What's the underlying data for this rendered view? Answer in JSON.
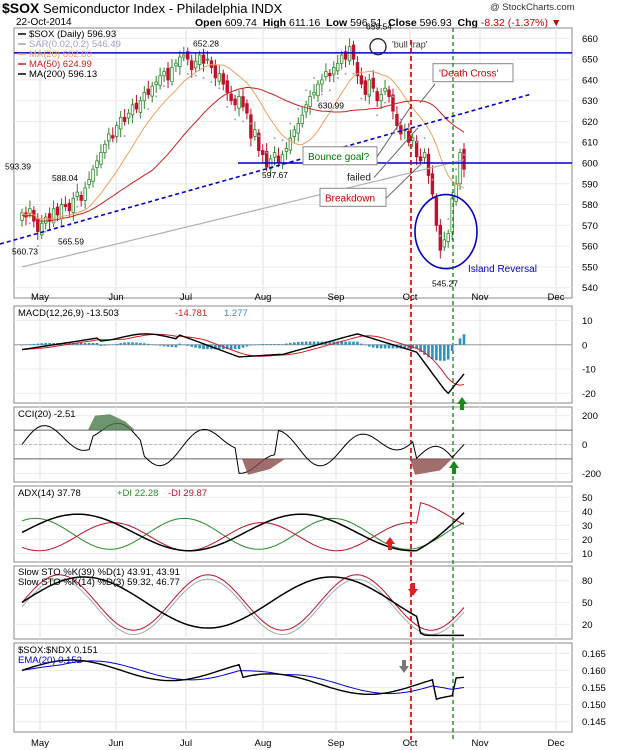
{
  "header": {
    "symbol": "$SOX",
    "name": "Semiconductor Index - Philadelphia INDX",
    "date": "22-Oct-2014",
    "open_label": "Open",
    "open": "609.74",
    "high_label": "High",
    "high": "611.16",
    "low_label": "Low",
    "low": "596.51",
    "close_label": "Close",
    "close": "596.93",
    "chg_label": "Chg",
    "chg": "-8.32 (-1.37%)",
    "copyright": "@ StockCharts.com"
  },
  "colors": {
    "up": "#2a8a2a",
    "down": "#c0102a",
    "ma20": "#f0a060",
    "ma50": "#d02020",
    "ma200": "#b0b0b0",
    "sar": "#a0a0d0",
    "annotation_blue": "#0000cc",
    "annotation_red": "#cc0000",
    "annotation_green": "#007700"
  },
  "chart_data": [
    {
      "type": "candlestick",
      "title": "$SOX (Daily) 596.93",
      "legend": [
        {
          "name": "$SOX (Daily) 596.93",
          "color": "#000000"
        },
        {
          "name": "SAR(0.02,0.2) 546.49",
          "color": "#a0a0d0"
        },
        {
          "name": "MA(20) 602.00",
          "color": "#f0a060"
        },
        {
          "name": "MA(50) 624.99",
          "color": "#d02020"
        },
        {
          "name": "MA(200) 596.13",
          "color": "#000000"
        }
      ],
      "y_ticks": [
        540,
        550,
        560,
        570,
        580,
        590,
        600,
        610,
        620,
        630,
        640,
        650,
        660
      ],
      "ylim": [
        535,
        665
      ],
      "x_ticks": [
        "May",
        "Jun",
        "Jul",
        "Aug",
        "Sep",
        "Oct",
        "Nov",
        "Dec"
      ],
      "closes": [
        576,
        574,
        578,
        572,
        567,
        571,
        574,
        572,
        578,
        575,
        580,
        579,
        577,
        583,
        586,
        582,
        588,
        592,
        597,
        601,
        605,
        609,
        614,
        612,
        618,
        622,
        620,
        624,
        628,
        626,
        630,
        634,
        633,
        637,
        639,
        642,
        644,
        640,
        646,
        648,
        651,
        652,
        650,
        645,
        649,
        652,
        648,
        650,
        646,
        641,
        643,
        638,
        634,
        630,
        628,
        632,
        627,
        624,
        612,
        616,
        606,
        604,
        598,
        602,
        605,
        600,
        604,
        607,
        612,
        616,
        619,
        623,
        628,
        632,
        634,
        638,
        640,
        644,
        642,
        646,
        648,
        652,
        650,
        656,
        650,
        642,
        638,
        633,
        640,
        636,
        630,
        633,
        636,
        632,
        625,
        618,
        614,
        616,
        610,
        612,
        603,
        601,
        605,
        594,
        585,
        570,
        558,
        563,
        566,
        583,
        590,
        605,
        597
      ],
      "point_labels": [
        {
          "text": "593.39",
          "value": 593.39
        },
        {
          "text": "588.04",
          "value": 588.04
        },
        {
          "text": "560.73",
          "value": 560.73
        },
        {
          "text": "565.59",
          "value": 565.59
        },
        {
          "text": "652.28",
          "value": 652.28
        },
        {
          "text": "597.67",
          "value": 597.67
        },
        {
          "text": "630.99",
          "value": 630.99
        },
        {
          "text": "659.54",
          "value": 659.54
        },
        {
          "text": "545.27",
          "value": 545.27
        }
      ],
      "annotations": [
        "'bull trap'",
        "'Death Cross'",
        "Bounce goal?",
        "failed",
        "Breakdown",
        "Island Reversal"
      ],
      "horizontal_lines": [
        653,
        600
      ]
    },
    {
      "type": "line",
      "title": "MACD(12,26,9)",
      "legend": [
        {
          "name": "MACD(12,26,9) -13.503",
          "color": "#000000"
        },
        {
          "name": "-14.781",
          "color": "#d02020"
        },
        {
          "name": "1.277",
          "color": "#3090c0"
        }
      ],
      "y_ticks": [
        10,
        0,
        -10,
        -20
      ],
      "ylim": [
        -24,
        16
      ]
    },
    {
      "type": "line",
      "title": "CCI(20)",
      "legend": [
        {
          "name": "CCI(20) -2.51",
          "color": "#000000"
        }
      ],
      "y_ticks": [
        200,
        0,
        -200
      ],
      "ylim": [
        -260,
        260
      ]
    },
    {
      "type": "line",
      "title": "ADX(14)",
      "legend": [
        {
          "name": "ADX(14) 37.78",
          "color": "#000000"
        },
        {
          "name": "+DI 22.28",
          "color": "#2a8a2a"
        },
        {
          "name": "-DI 29.87",
          "color": "#c0102a"
        }
      ],
      "y_ticks": [
        50,
        40,
        30,
        20,
        10
      ],
      "ylim": [
        4,
        58
      ]
    },
    {
      "type": "line",
      "title": "Slow STO",
      "legend": [
        {
          "name": "Slow STO %K(39) %D(1) 43.91, 43.91",
          "color": "#000000"
        },
        {
          "name": "Slow STO %K(14) %D(3) 59.32, 46.77",
          "color": "#c0102a"
        }
      ],
      "y_ticks": [
        80,
        50,
        20
      ],
      "ylim": [
        0,
        100
      ]
    },
    {
      "type": "line",
      "title": "$SOX:$NDX 0.151",
      "legend": [
        {
          "name": "$SOX:$NDX 0.151",
          "color": "#000000"
        },
        {
          "name": "EMA(20) 0.152",
          "color": "#0000cc"
        }
      ],
      "y_ticks": [
        0.165,
        0.16,
        0.155,
        0.15,
        0.145
      ],
      "ylim": [
        0.142,
        0.168
      ]
    }
  ]
}
